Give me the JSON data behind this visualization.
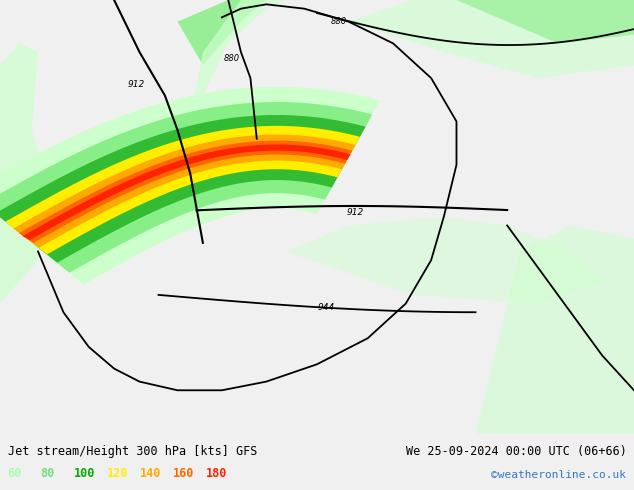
{
  "title_left": "Jet stream/Height 300 hPa [kts] GFS",
  "title_right": "We 25-09-2024 00:00 UTC (06+66)",
  "credit": "©weatheronline.co.uk",
  "legend_values": [
    60,
    80,
    100,
    120,
    140,
    160,
    180
  ],
  "legend_colors": [
    "#aaffaa",
    "#77dd77",
    "#00aa00",
    "#ffee00",
    "#ffaa00",
    "#ff6600",
    "#ff2200"
  ],
  "figsize": [
    6.34,
    4.9
  ],
  "dpi": 100,
  "map_bg": "#e8e8e8",
  "land_bg": "#d8d8d8",
  "light_green": "#cceecc",
  "mid_green": "#88cc88",
  "dark_green": "#44aa44",
  "jet_60": "#ccffcc",
  "jet_80": "#88ee88",
  "jet_100": "#33bb33",
  "jet_120": "#ffee00",
  "jet_140": "#ffaa00",
  "jet_160": "#ff6600",
  "jet_180": "#ff2200"
}
